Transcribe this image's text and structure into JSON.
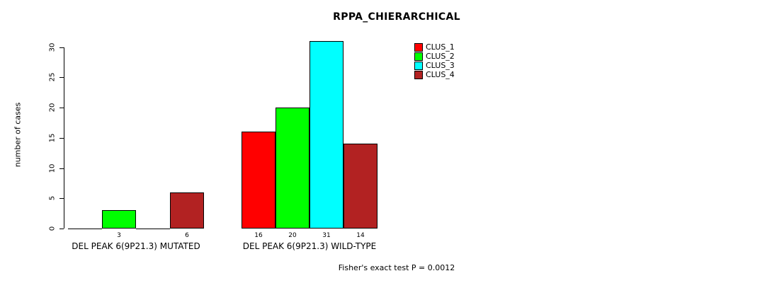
{
  "title": "RPPA_CHIERARCHICAL",
  "ylabel": "number of cases",
  "footer": "Fisher's exact test P = 0.0012",
  "chart_data": {
    "type": "bar",
    "title": "RPPA_CHIERARCHICAL",
    "ylabel": "number of cases",
    "xlabel": "",
    "ylim": [
      0,
      31
    ],
    "yticks": [
      0,
      5,
      10,
      15,
      20,
      25,
      30
    ],
    "grid": false,
    "legend_position": "top-right",
    "categories": [
      "DEL PEAK  6(9P21.3) MUTATED",
      "DEL PEAK  6(9P21.3) WILD-TYPE"
    ],
    "series": [
      {
        "name": "CLUS_1",
        "color": "#FF0000",
        "values": [
          0,
          16
        ]
      },
      {
        "name": "CLUS_2",
        "color": "#00FF00",
        "values": [
          3,
          20
        ]
      },
      {
        "name": "CLUS_3",
        "color": "#00FFFF",
        "values": [
          0,
          31
        ]
      },
      {
        "name": "CLUS_4",
        "color": "#B22222",
        "values": [
          6,
          14
        ]
      }
    ],
    "bar_value_labels": [
      [
        null,
        "3",
        null,
        "6"
      ],
      [
        "16",
        "20",
        "31",
        "14"
      ]
    ],
    "annotation": "Fisher's exact test P = 0.0012"
  }
}
